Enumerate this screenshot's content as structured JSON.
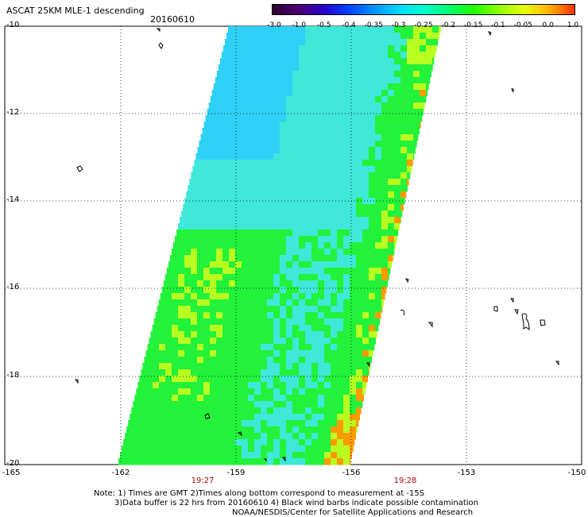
{
  "title": "ASCAT 25KM MLE-1 descending",
  "date": "20160610",
  "colorbar": {
    "ticks": [
      "-3.0",
      "-1.0",
      "-0.5",
      "-0.4",
      "-0.35",
      "-0.3",
      "-0.25",
      "-0.2",
      "-0.15",
      "-0.1",
      "-0.05",
      "0.0",
      "1.0"
    ],
    "colors": [
      "#2a0030",
      "#4b0070",
      "#2a00c8",
      "#0040ff",
      "#0090ff",
      "#00d8ff",
      "#00ffd0",
      "#00ff70",
      "#20ff00",
      "#90ff00",
      "#e8ff00",
      "#ffb000",
      "#ff3000"
    ]
  },
  "axes": {
    "lat_labels": [
      "-10",
      "-12",
      "-14",
      "-16",
      "-18",
      "-20"
    ],
    "lon_labels": [
      "-165",
      "-162",
      "-159",
      "-156",
      "-153",
      "-150"
    ],
    "time_labels": [
      "19:27",
      "19:28"
    ]
  },
  "colors": {
    "swath_main": "#22f23a",
    "swath_cyan": "#3fe8d8",
    "swath_blue": "#2fd0f5",
    "swath_yellow": "#b8ff20",
    "swath_orange": "#ff9b00",
    "grid": "#000000"
  },
  "notes": [
    "Note: 1) Times are GMT 2)Times along bottom correspond to measurement at -15S",
    "3)Data buffer is 22 hrs from 20160610 4) Black wind barbs indicate possible contamination",
    "NOAA/NESDIS/Center for Satellite Applications and Research"
  ]
}
